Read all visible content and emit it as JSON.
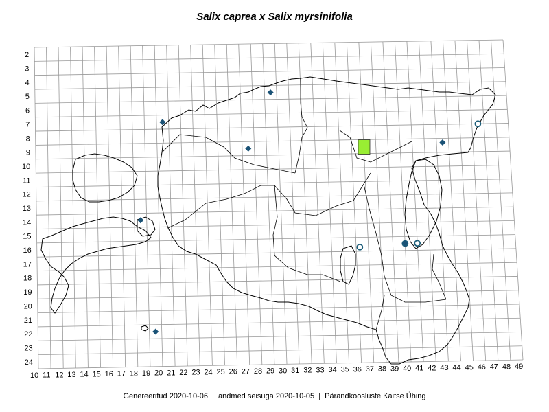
{
  "title": "Salix caprea x Salix myrsinifolia",
  "footer": "Genereeritud 2020-10-06  |  andmed seisuga 2020-10-05  |  Pärandkoosluste Kaitse Ühing",
  "colors": {
    "grid": "#999999",
    "border": "#000000",
    "marker_fill": "#1a5276",
    "circle_stroke": "#1f5f7a",
    "square_fill": "#99ee33"
  },
  "axes": {
    "x_labels": [
      "10",
      "11",
      "12",
      "13",
      "14",
      "15",
      "16",
      "17",
      "18",
      "19",
      "20",
      "21",
      "22",
      "23",
      "24",
      "25",
      "26",
      "27",
      "28",
      "29",
      "30",
      "31",
      "32",
      "33",
      "34",
      "35",
      "36",
      "37",
      "38",
      "39",
      "40",
      "41",
      "42",
      "43",
      "44",
      "45",
      "46",
      "47",
      "48",
      "49"
    ],
    "y_labels": [
      "2",
      "3",
      "4",
      "5",
      "6",
      "7",
      "8",
      "9",
      "10",
      "11",
      "12",
      "13",
      "14",
      "15",
      "16",
      "17",
      "18",
      "19",
      "20",
      "21",
      "22",
      "23",
      "24"
    ]
  },
  "markers": {
    "diamonds": [
      {
        "x": 29,
        "y": 5
      },
      {
        "x": 20,
        "y": 7
      },
      {
        "x": 27,
        "y": 9
      },
      {
        "x": 43,
        "y": 8.8
      },
      {
        "x": 18,
        "y": 14
      },
      {
        "x": 39.5,
        "y": 16
      },
      {
        "x": 19,
        "y": 22
      }
    ],
    "circles": [
      {
        "x": 46,
        "y": 7.5
      },
      {
        "x": 35.8,
        "y": 16.2
      },
      {
        "x": 39.5,
        "y": 16
      },
      {
        "x": 40.5,
        "y": 16
      }
    ],
    "squares": [
      {
        "x": 36.5,
        "y": 9
      }
    ]
  }
}
